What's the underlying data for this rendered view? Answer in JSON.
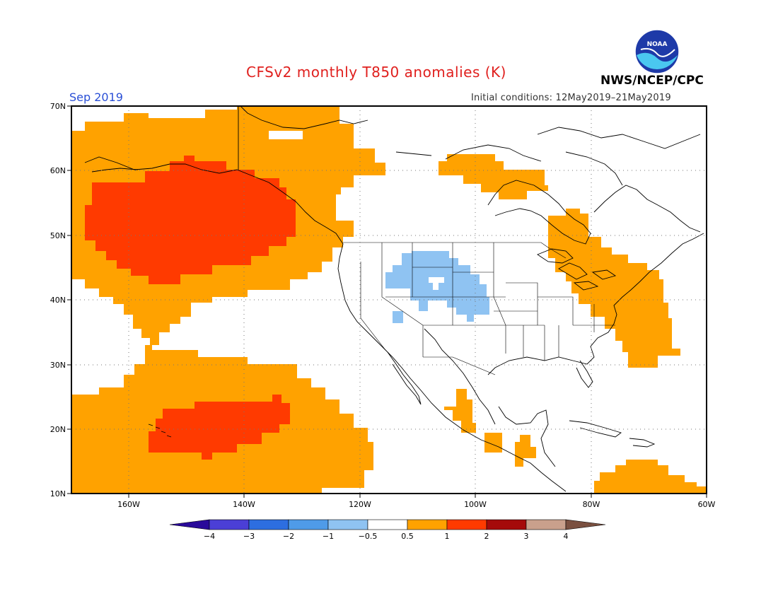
{
  "title": "CFSv2 monthly T850 anomalies (K)",
  "valid_month": "Sep 2019",
  "initial_conditions": "Initial conditions: 12May2019–21May2019",
  "organization": "NWS/NCEP/CPC",
  "logo_text": "NOAA",
  "map": {
    "lat_labels": [
      "70N",
      "60N",
      "50N",
      "40N",
      "30N",
      "20N",
      "10N"
    ],
    "lon_labels": [
      "160W",
      "140W",
      "120W",
      "100W",
      "80W",
      "60W"
    ]
  },
  "colorbar": {
    "labels": [
      "−4",
      "−3",
      "−2",
      "−1",
      "−0.5",
      "0.5",
      "1",
      "2",
      "3",
      "4"
    ],
    "colors": [
      "#2a0a9a",
      "#4b3fd6",
      "#2d6ee0",
      "#4f9be8",
      "#8fc3f2",
      "#ffffff",
      "#ffa200",
      "#ff3a00",
      "#a50a0a",
      "#c9a08c",
      "#7a5040"
    ]
  },
  "colors": {
    "warm_1": "#ffa200",
    "warm_2": "#ff3a00",
    "cool_1": "#8fc3f2",
    "title": "#e0201e",
    "month": "#2a4fd6"
  }
}
